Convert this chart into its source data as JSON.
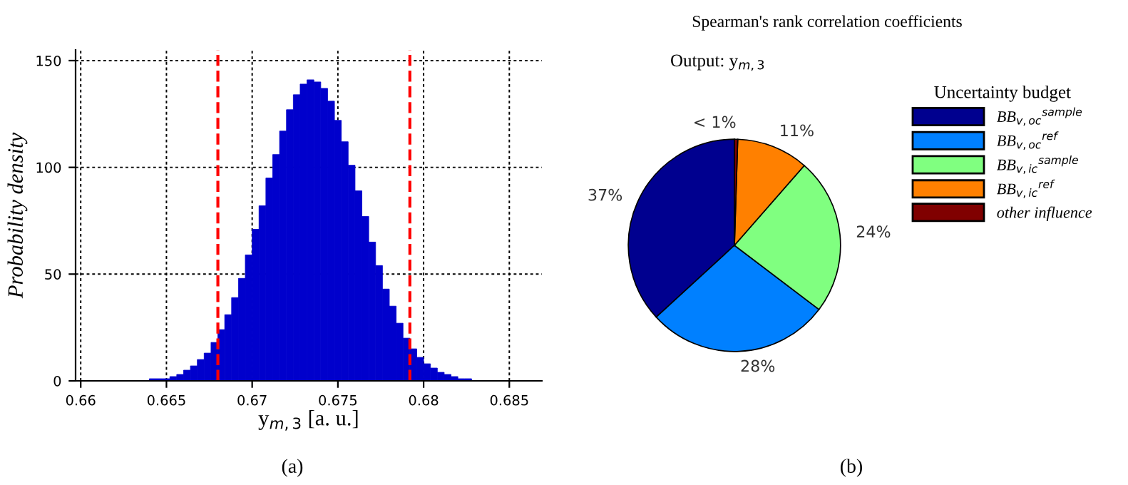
{
  "chart_data": [
    {
      "type": "histogram",
      "xlabel": "y$_{m,3}$ [a. u.]",
      "ylabel": "Probability density",
      "color": "#0000cc",
      "bins": [
        0.6608,
        0.6612,
        0.6616,
        0.662,
        0.6624,
        0.6628,
        0.6632,
        0.6636,
        0.664,
        0.6644,
        0.6648,
        0.6652,
        0.6656,
        0.666,
        0.6664,
        0.6668,
        0.6672,
        0.6676,
        0.668,
        0.6684,
        0.6688,
        0.6692,
        0.6696,
        0.67,
        0.6704,
        0.6708,
        0.6712,
        0.6716,
        0.672,
        0.6724,
        0.6728,
        0.6732,
        0.6736,
        0.674,
        0.6744,
        0.6748,
        0.6752,
        0.6756,
        0.676,
        0.6764,
        0.6768,
        0.6772,
        0.6776,
        0.678,
        0.6784,
        0.6788,
        0.6792,
        0.6796,
        0.68,
        0.6804,
        0.6808,
        0.6812,
        0.6816,
        0.682,
        0.6824,
        0.6828,
        0.6832,
        0.6836,
        0.684,
        0.6844,
        0.6848,
        0.6852,
        0.6856,
        0.686,
        0.6864
      ],
      "values": [
        0,
        0,
        0,
        0,
        0,
        0,
        0,
        0,
        1,
        1,
        1,
        2,
        3,
        5,
        7,
        10,
        13,
        18,
        24,
        31,
        39,
        48,
        59,
        71,
        82,
        95,
        106,
        117,
        127,
        134,
        139,
        141,
        140,
        137,
        131,
        122,
        112,
        101,
        89,
        77,
        65,
        54,
        43,
        35,
        27,
        20,
        15,
        11,
        8,
        6,
        4,
        3,
        2,
        1,
        1,
        0,
        0,
        0,
        0,
        0,
        0,
        0,
        0,
        0
      ],
      "xlim": [
        0.6597,
        0.6869
      ],
      "ylim": [
        0,
        155
      ],
      "xticks": [
        0.66,
        0.665,
        0.67,
        0.675,
        0.68,
        0.685
      ],
      "yticks": [
        0,
        50,
        100,
        150
      ],
      "grid": true,
      "ref_lines": [
        {
          "axis": "x",
          "value": 0.668,
          "color": "#ff0000",
          "line_style": "dashed"
        },
        {
          "axis": "x",
          "value": 0.6792,
          "color": "#ff0000",
          "line_style": "dashed"
        }
      ],
      "annotations": [
        "(a)"
      ]
    },
    {
      "type": "pie",
      "title": "Spearman's rank correlation coefficients",
      "subtitle": "Output: y$_{m,3}$",
      "legend_title": "Uncertainty budget",
      "legend": "right",
      "categories": [
        "BB$_{v,oc}$$^{sample}$",
        "BB$_{v,oc}$$^{ref}$",
        "BB$_{v,ic}$$^{sample}$",
        "BB$_{v,ic}$$^{ref}$",
        "other influence"
      ],
      "values": [
        37,
        28,
        24,
        11,
        0.5
      ],
      "colors": [
        "#00008f",
        "#0080ff",
        "#80ff80",
        "#ff8000",
        "#800000"
      ],
      "value_labels": [
        "37%",
        "28%",
        "24%",
        "11%",
        "< 1%"
      ],
      "annotations": [
        "(b)"
      ]
    }
  ]
}
